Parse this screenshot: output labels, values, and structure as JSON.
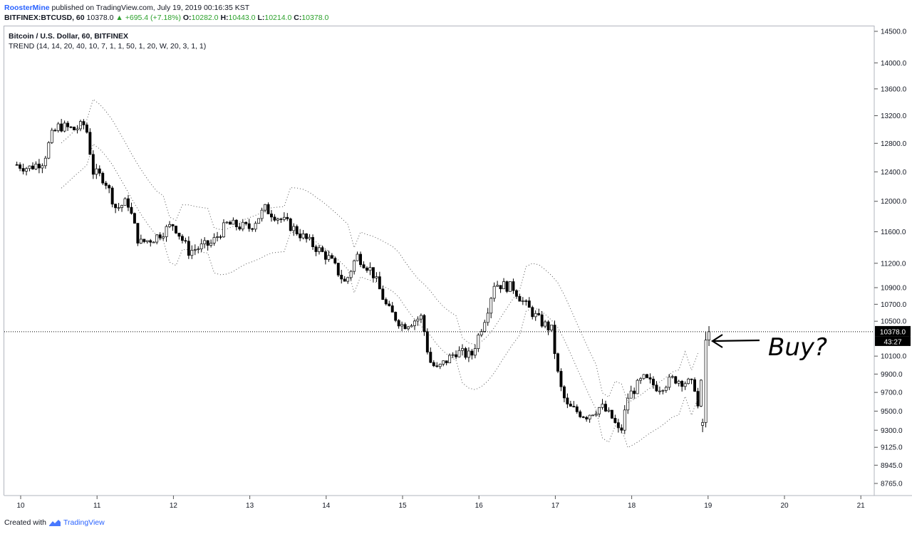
{
  "header": {
    "author": "RoosterMine",
    "published": "published on TradingView.com, July 19, 2019 00:16:35 KST",
    "symbol": "BITFINEX:BTCUSD, 60",
    "last": "10378.0",
    "change": "+695.4 (+7.18%)",
    "open_label": "O:",
    "open": "10282.0",
    "high_label": "H:",
    "high": "10443.0",
    "low_label": "L:",
    "low": "10214.0",
    "close_label": "C:",
    "close": "10378.0"
  },
  "legend": {
    "title": "Bitcoin / U.S. Dollar, 60, BITFINEX",
    "indicator": "TREND (14, 14, 20, 40, 10, 7, 1, 1, 50, 1, 20, W, 20, 3, 1, 1)"
  },
  "price_tag": {
    "value": "10378.0",
    "countdown": "43:27"
  },
  "annotation": {
    "text": "Buy?"
  },
  "footer": {
    "created": "Created with",
    "brand": "TradingView"
  },
  "colors": {
    "up_fill": "#ffffff",
    "down_fill": "#000000",
    "wick": "#000000",
    "accent": "#2962ff",
    "positive": "#2aa02a",
    "grid_axis": "#b2b5be"
  },
  "chart_data": {
    "type": "candlestick",
    "title": "Bitcoin / U.S. Dollar, 60, BITFINEX",
    "y_axis_scale": "log",
    "y_ticks": [
      8765.0,
      8945.0,
      9125.0,
      9300.0,
      9500.0,
      9700.0,
      9900.0,
      10100.0,
      10500.0,
      10700.0,
      10900.0,
      11200.0,
      11600.0,
      12000.0,
      12400.0,
      12800.0,
      13200.0,
      13600.0,
      14000.0,
      14500.0
    ],
    "y_tick_labels": [
      "8765.0",
      "8945.0",
      "9125.0",
      "9300.0",
      "9500.0",
      "9700.0",
      "9900.0",
      "10100.0",
      "10500.0",
      "10700.0",
      "10900.0",
      "11200.0",
      "11600.0",
      "12000.0",
      "12400.0",
      "12800.0",
      "13200.0",
      "13600.0",
      "14000.0",
      "14500.0"
    ],
    "ylim": [
      8600,
      14800
    ],
    "x_ticks": [
      "10",
      "11",
      "12",
      "13",
      "14",
      "15",
      "16",
      "17",
      "18",
      "19",
      "20",
      "21"
    ],
    "x_range_days": [
      9.95,
      21.2
    ],
    "last_price": 10378.0,
    "series": [
      {
        "name": "BTCUSD",
        "kind": "ohlc_anchors",
        "points": [
          {
            "day": 9.95,
            "close": 12500
          },
          {
            "day": 10.1,
            "close": 12450
          },
          {
            "day": 10.3,
            "close": 12550
          },
          {
            "day": 10.4,
            "close": 12900
          },
          {
            "day": 10.5,
            "close": 13050
          },
          {
            "day": 10.7,
            "close": 13000
          },
          {
            "day": 10.85,
            "close": 13080
          },
          {
            "day": 10.95,
            "close": 12400
          },
          {
            "day": 11.1,
            "close": 12300
          },
          {
            "day": 11.25,
            "close": 11900
          },
          {
            "day": 11.4,
            "close": 12000
          },
          {
            "day": 11.55,
            "close": 11450
          },
          {
            "day": 11.75,
            "close": 11520
          },
          {
            "day": 12.0,
            "close": 11700
          },
          {
            "day": 12.2,
            "close": 11350
          },
          {
            "day": 12.5,
            "close": 11450
          },
          {
            "day": 12.7,
            "close": 11700
          },
          {
            "day": 13.0,
            "close": 11650
          },
          {
            "day": 13.2,
            "close": 11900
          },
          {
            "day": 13.5,
            "close": 11700
          },
          {
            "day": 13.8,
            "close": 11450
          },
          {
            "day": 14.05,
            "close": 11250
          },
          {
            "day": 14.25,
            "close": 10950
          },
          {
            "day": 14.4,
            "close": 11300
          },
          {
            "day": 14.6,
            "close": 11100
          },
          {
            "day": 14.8,
            "close": 10650
          },
          {
            "day": 15.0,
            "close": 10450
          },
          {
            "day": 15.25,
            "close": 10550
          },
          {
            "day": 15.35,
            "close": 10050
          },
          {
            "day": 15.45,
            "close": 9950
          },
          {
            "day": 15.7,
            "close": 10150
          },
          {
            "day": 15.9,
            "close": 10100
          },
          {
            "day": 16.1,
            "close": 10600
          },
          {
            "day": 16.2,
            "close": 10950
          },
          {
            "day": 16.45,
            "close": 10900
          },
          {
            "day": 16.6,
            "close": 10700
          },
          {
            "day": 16.8,
            "close": 10500
          },
          {
            "day": 16.95,
            "close": 10400
          },
          {
            "day": 17.05,
            "close": 9800
          },
          {
            "day": 17.15,
            "close": 9550
          },
          {
            "day": 17.4,
            "close": 9450
          },
          {
            "day": 17.6,
            "close": 9550
          },
          {
            "day": 17.75,
            "close": 9420
          },
          {
            "day": 17.85,
            "close": 9250
          },
          {
            "day": 17.95,
            "close": 9650
          },
          {
            "day": 18.15,
            "close": 9850
          },
          {
            "day": 18.35,
            "close": 9750
          },
          {
            "day": 18.55,
            "close": 9850
          },
          {
            "day": 18.75,
            "close": 9800
          },
          {
            "day": 18.85,
            "close": 9750
          },
          {
            "day": 18.88,
            "close": 9380
          },
          {
            "day": 18.95,
            "close": 10378
          }
        ]
      }
    ]
  }
}
